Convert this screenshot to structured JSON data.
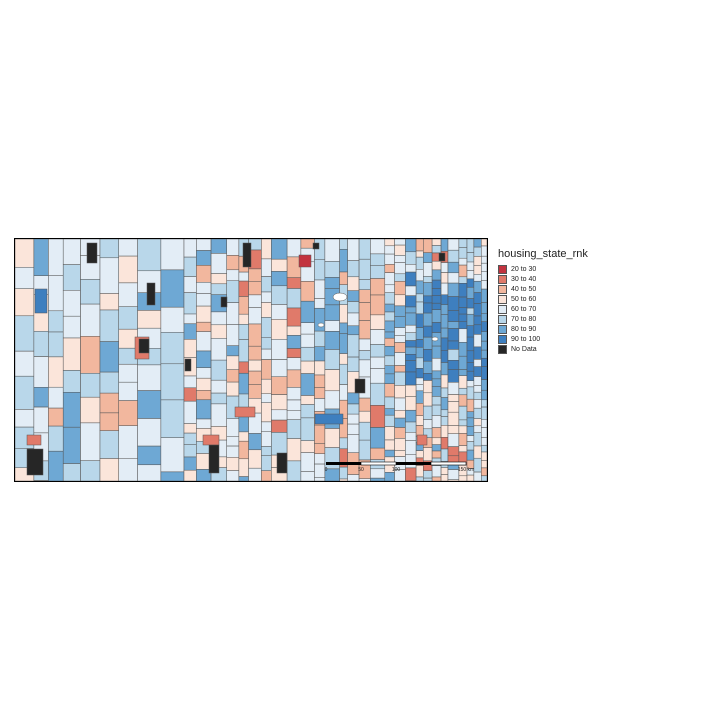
{
  "legend": {
    "title": "housing_state_rnk",
    "items": [
      {
        "label": "20 to 30",
        "color": "#c2333f"
      },
      {
        "label": "30 to 40",
        "color": "#e07a6a"
      },
      {
        "label": "40 to 50",
        "color": "#f2b79e"
      },
      {
        "label": "50 to 60",
        "color": "#fbe5da"
      },
      {
        "label": "60 to 70",
        "color": "#e3edf6"
      },
      {
        "label": "70 to 80",
        "color": "#b9d7ea"
      },
      {
        "label": "80 to 90",
        "color": "#6ea8d4"
      },
      {
        "label": "90 to 100",
        "color": "#3e7fbf"
      },
      {
        "label": "No Data",
        "color": "#262626"
      }
    ]
  },
  "map": {
    "boundary_color": "#555555",
    "frame_color": "#000000"
  },
  "scale_bar": {
    "labels": [
      "0",
      "50",
      "100",
      "150 km"
    ]
  }
}
